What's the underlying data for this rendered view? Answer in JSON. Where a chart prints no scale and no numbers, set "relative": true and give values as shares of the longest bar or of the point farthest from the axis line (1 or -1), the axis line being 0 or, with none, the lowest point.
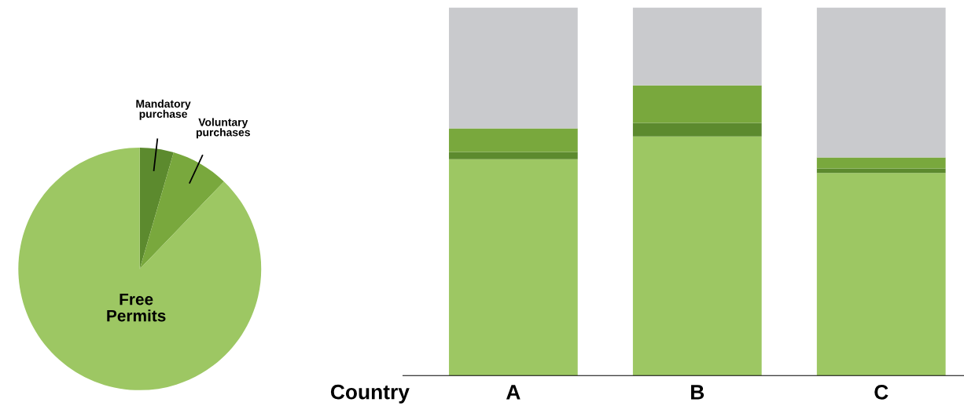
{
  "chart_data": [
    {
      "type": "pie",
      "categories": [
        "Mandatory\npurchase",
        "Voluntary\npurchases",
        "Free\nPermits"
      ],
      "values": [
        4.5,
        7.7,
        87.8
      ],
      "colors": [
        "#5c8a2e",
        "#79a83d",
        "#9dc763"
      ]
    },
    {
      "type": "bar",
      "stacked": true,
      "relative": true,
      "xlabel": "Country",
      "categories": [
        "A",
        "B",
        "C"
      ],
      "series": [
        {
          "color": "#9dc763",
          "values": [
            0.588,
            0.65,
            0.551
          ]
        },
        {
          "color": "#5c8a2e",
          "values": [
            0.02,
            0.037,
            0.012
          ]
        },
        {
          "color": "#79a83d",
          "values": [
            0.064,
            0.102,
            0.03
          ]
        },
        {
          "color": "#c9cacd",
          "values": [
            0.328,
            0.211,
            0.407
          ]
        }
      ]
    }
  ]
}
